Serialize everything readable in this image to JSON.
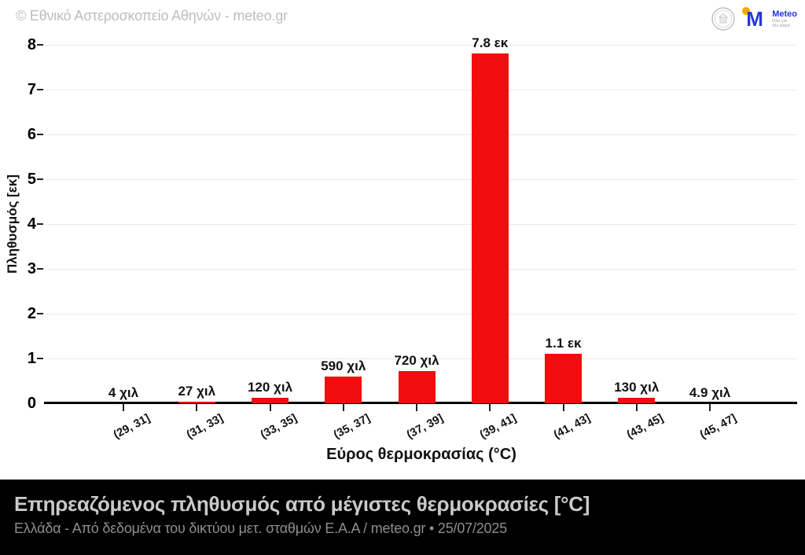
{
  "header": {
    "watermark": "© Εθνικό Αστεροσκοπείο Αθηνών - meteo.gr",
    "meteo_logo": {
      "m": "M",
      "name": "Meteo",
      "tagline_line1": "Όλα για",
      "tagline_line2": "τον καιρό"
    }
  },
  "chart_data": {
    "type": "bar",
    "title": "Επηρεαζόμενος πληθυσμός από μέγιστες θερμοκρασίες [°C]",
    "subtitle": "Ελλάδα - Από δεδομένα του δικτύου μετ. σταθμών Ε.Α.Α / meteo.gr • 25/07/2025",
    "categories": [
      "(29, 31]",
      "(31, 33]",
      "(33, 35]",
      "(35, 37]",
      "(37, 39]",
      "(39, 41]",
      "(41, 43]",
      "(43, 45]",
      "(45, 47]"
    ],
    "values_millions": [
      0.004,
      0.027,
      0.12,
      0.59,
      0.72,
      7.8,
      1.1,
      0.13,
      0.0049
    ],
    "value_labels": [
      "4 χιλ",
      "27 χιλ",
      "120 χιλ",
      "590 χιλ",
      "720 χιλ",
      "7.8 εκ",
      "1.1 εκ",
      "130 χιλ",
      "4.9 χιλ"
    ],
    "xlabel": "Εύρος θερμοκρασίας (°C)",
    "ylabel": "Πληθυσμός [εκ]",
    "ylim": [
      0,
      8
    ],
    "yticks": [
      0,
      1,
      2,
      3,
      4,
      5,
      6,
      7,
      8
    ],
    "bar_color": "#f10d0d",
    "grid": true,
    "legend": "none"
  },
  "footer": {
    "title": "Επηρεαζόμενος πληθυσμός από μέγιστες θερμοκρασίες [°C]",
    "subtitle": "Ελλάδα - Από δεδομένα του δικτύου μετ. σταθμών Ε.Α.Α / meteo.gr • 25/07/2025"
  }
}
